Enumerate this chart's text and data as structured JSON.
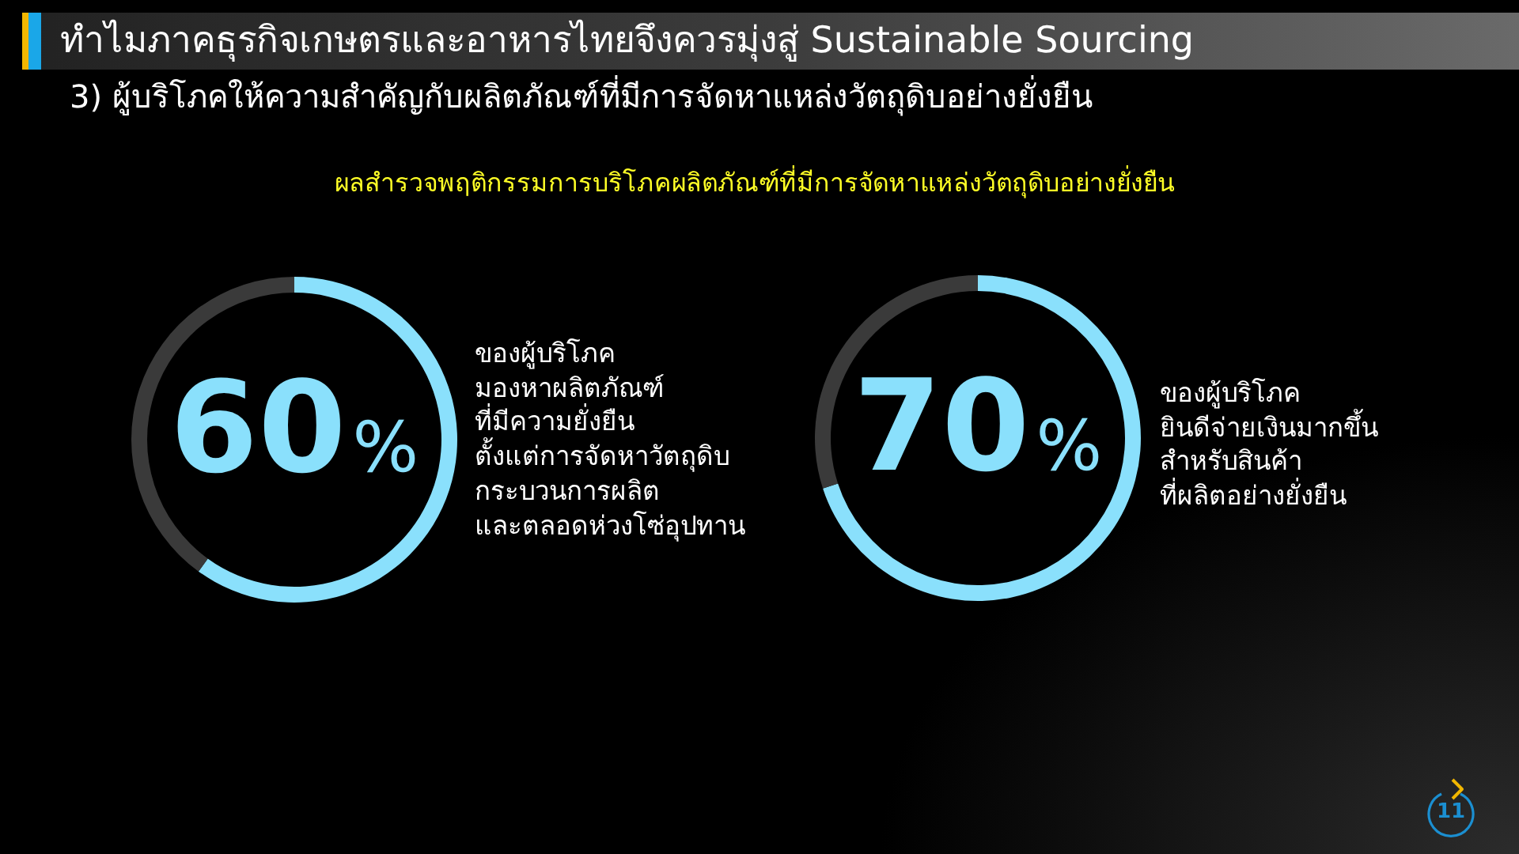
{
  "chart_data": [
    {
      "type": "other",
      "title": "ทำไมภาคธุรกิจเกษตรและอาหารไทยจึงควรมุ่งสู่ Sustainable Sourcing",
      "subtitle": "3) ผู้บริโภคให้ความสำคัญกับผลิตภัณฑ์ที่มีการจัดหาแหล่งวัตถุดิบอย่างยั่งยืน",
      "annotations": [
        "ผลสำรวจพฤติกรรมการบริโภคผลิตภัณฑ์ที่มีการจัดหาแหล่งวัตถุดิบอย่างยั่งยืน",
        "11"
      ]
    },
    {
      "type": "donut",
      "categories": [
        null,
        null
      ],
      "values": [
        60,
        40
      ],
      "colors": [
        "#8ae0fc",
        "#3a3a3a"
      ],
      "value_labels": [
        "60%",
        null
      ],
      "annotations": [
        "ของผู้บริโภค\nมองหาผลิตภัณฑ์\nที่มีความยั่งยืน\nตั้งแต่การจัดหาวัตถุดิบ\nกระบวนการผลิต\nและตลอดห่วงโซ่อุปทาน"
      ]
    },
    {
      "type": "donut",
      "categories": [
        null,
        null
      ],
      "values": [
        70,
        30
      ],
      "colors": [
        "#8ae0fc",
        "#3a3a3a"
      ],
      "value_labels": [
        "70%",
        null
      ],
      "annotations": [
        "ของผู้บริโภค\nยินดีจ่ายเงินมากขึ้น\nสำหรับสินค้า\nที่ผลิตอย่างยั่งยืน"
      ]
    }
  ]
}
